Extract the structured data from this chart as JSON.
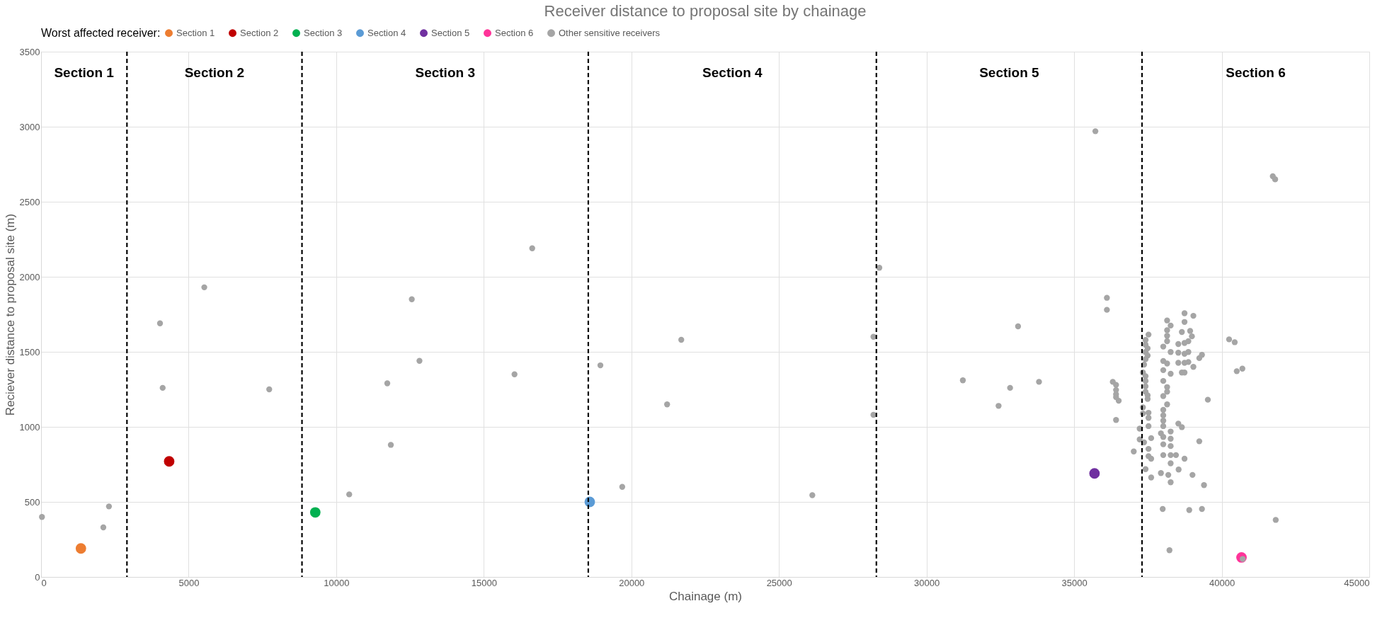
{
  "chart_data": {
    "type": "scatter",
    "title": "Receiver distance to proposal site by chainage",
    "xlabel": "Chainage (m)",
    "ylabel": "Reciever distance to proposal site (m)",
    "legend_title": "Worst affected receiver:",
    "legend": "top",
    "grid": true,
    "marker": "circle",
    "xlim": [
      0,
      45000
    ],
    "xticks": [
      0,
      5000,
      10000,
      15000,
      20000,
      25000,
      30000,
      35000,
      40000,
      45000
    ],
    "ylim": [
      0,
      3500
    ],
    "yticks": [
      0,
      500,
      1000,
      1500,
      2000,
      2500,
      3000,
      3500
    ],
    "series": [
      {
        "name": "Section 1",
        "color": "#ed7d31",
        "x": [
          1350
        ],
        "values": [
          190
        ]
      },
      {
        "name": "Section 2",
        "color": "#c00000",
        "x": [
          4340
        ],
        "values": [
          770
        ]
      },
      {
        "name": "Section 3",
        "color": "#00b050",
        "x": [
          9290
        ],
        "values": [
          430
        ]
      },
      {
        "name": "Section 4",
        "color": "#5b9bd5",
        "x": [
          18590
        ],
        "values": [
          500
        ]
      },
      {
        "name": "Section 5",
        "color": "#7030a0",
        "x": [
          35690
        ],
        "values": [
          690
        ]
      },
      {
        "name": "Section 6",
        "color": "#ff3399",
        "x": [
          40670
        ],
        "values": [
          130
        ]
      },
      {
        "name": "Other sensitive receivers",
        "color": "#a5a5a5",
        "x": [
          30,
          2110,
          2300,
          4030,
          4120,
          5530,
          7730,
          10440,
          11730,
          11850,
          12560,
          12820,
          16040,
          16640,
          18950,
          19690,
          21210,
          21690,
          26130,
          28200,
          28200,
          28400,
          31230,
          32440,
          32830,
          33100,
          33810,
          35720,
          36110,
          36110,
          36310,
          36420,
          36420,
          36420,
          36420,
          36510,
          36420,
          40710,
          40250,
          40440,
          40510,
          40700,
          39530,
          39330,
          38900,
          38000,
          38230,
          39400,
          39010,
          41730,
          41810,
          41830,
          37520,
          37420,
          37420,
          37490,
          37420,
          37490,
          37420,
          37370,
          37330,
          37420,
          37420,
          37420,
          37420,
          37490,
          37490,
          37330,
          37330,
          37520,
          37520,
          37520,
          37220,
          37220,
          37370,
          37610,
          37020,
          37520,
          37520,
          37610,
          37420,
          37610,
          38150,
          38270,
          38150,
          38150,
          38150,
          38020,
          38270,
          38020,
          38150,
          38020,
          38270,
          38020,
          38150,
          38150,
          38020,
          38150,
          38020,
          38020,
          38020,
          38020,
          37940,
          38270,
          38020,
          38270,
          38020,
          38270,
          38020,
          38270,
          38270,
          37940,
          38190,
          38270,
          38530,
          38650,
          38450,
          38740,
          38540,
          39240,
          38740,
          39040,
          38740,
          38650,
          38930,
          38990,
          38530,
          38740,
          38870,
          38530,
          38740,
          38870,
          38530,
          38740,
          38870,
          38650,
          38740,
          39040,
          39240,
          39330
        ],
        "values": [
          400,
          330,
          470,
          1690,
          1260,
          1930,
          1250,
          550,
          1290,
          880,
          1850,
          1440,
          1350,
          2190,
          1410,
          600,
          1150,
          1580,
          545,
          1600,
          1080,
          2060,
          1310,
          1140,
          1260,
          1670,
          1300,
          2970,
          1860,
          1780,
          1300,
          1280,
          1246,
          1217,
          1198,
          1174,
          1046,
          120,
          1583,
          1564,
          1371,
          1388,
          1181,
          453,
          446,
          453,
          178,
          612,
          680,
          2670,
          2650,
          380,
          1615,
          1579,
          1547,
          1523,
          1499,
          1475,
          1451,
          1415,
          1362,
          1338,
          1306,
          1270,
          1234,
          1210,
          1186,
          1130,
          1089,
          1094,
          1060,
          1005,
          988,
          916,
          897,
          925,
          836,
          853,
          805,
          788,
          718,
          663,
          1709,
          1675,
          1644,
          1607,
          1571,
          1535,
          1499,
          1439,
          1422,
          1378,
          1354,
          1306,
          1265,
          1234,
          1205,
          1150,
          1113,
          1077,
          1041,
          1005,
          957,
          969,
          933,
          921,
          884,
          872,
          812,
          812,
          757,
          692,
          680,
          631,
          1022,
          998,
          812,
          788,
          716,
          904,
          1757,
          1740,
          1699,
          1632,
          1639,
          1603,
          1552,
          1559,
          1571,
          1494,
          1487,
          1499,
          1427,
          1427,
          1432,
          1362,
          1362,
          1400,
          1458,
          1480
        ]
      }
    ],
    "ref_lines": [
      {
        "axis": "x",
        "value": 2910,
        "line_style": "dashed",
        "color": "#000000"
      },
      {
        "axis": "x",
        "value": 8840,
        "line_style": "dashed",
        "color": "#000000"
      },
      {
        "axis": "x",
        "value": 18540,
        "line_style": "dashed",
        "color": "#000000"
      },
      {
        "axis": "x",
        "value": 28300,
        "line_style": "dashed",
        "color": "#000000"
      },
      {
        "axis": "x",
        "value": 37300,
        "line_style": "dashed",
        "color": "#000000"
      }
    ],
    "annotations": [
      "Section 1",
      "Section 2",
      "Section 3",
      "Section 4",
      "Section 5",
      "Section 6"
    ]
  }
}
